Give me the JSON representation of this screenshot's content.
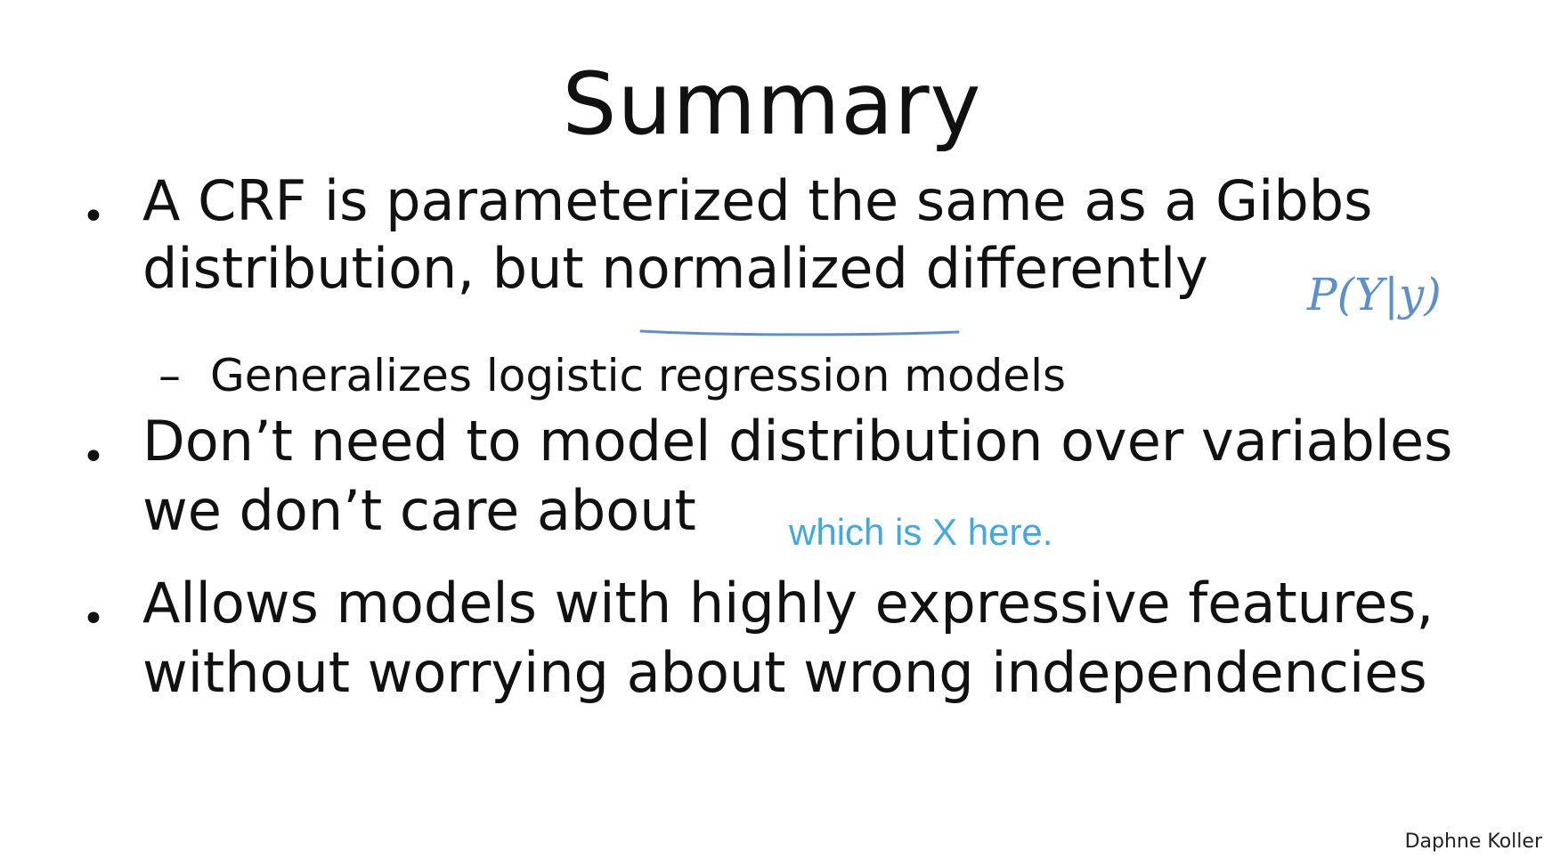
{
  "slide": {
    "title": "Summary",
    "bullets": [
      {
        "lines": [
          "A CRF is parameterized the same as a Gibbs",
          "distribution, but normalized differently"
        ],
        "sub": "Generalizes logistic regression models"
      },
      {
        "lines": [
          "Don’t need to model distribution over variables",
          "we don’t care about"
        ]
      },
      {
        "lines": [
          "Allows models with highly expressive features,",
          "without worrying about wrong independencies"
        ]
      }
    ],
    "bullet_symbol": "•",
    "sub_symbol": "–"
  },
  "annotations": {
    "handwritten_formula": "P(Y|y)",
    "caption_note": "which is X here.",
    "ink_color": "#5b8fd0",
    "caption_color": "#3fa9e8"
  },
  "footer": {
    "credit": "Daphne Koller"
  }
}
